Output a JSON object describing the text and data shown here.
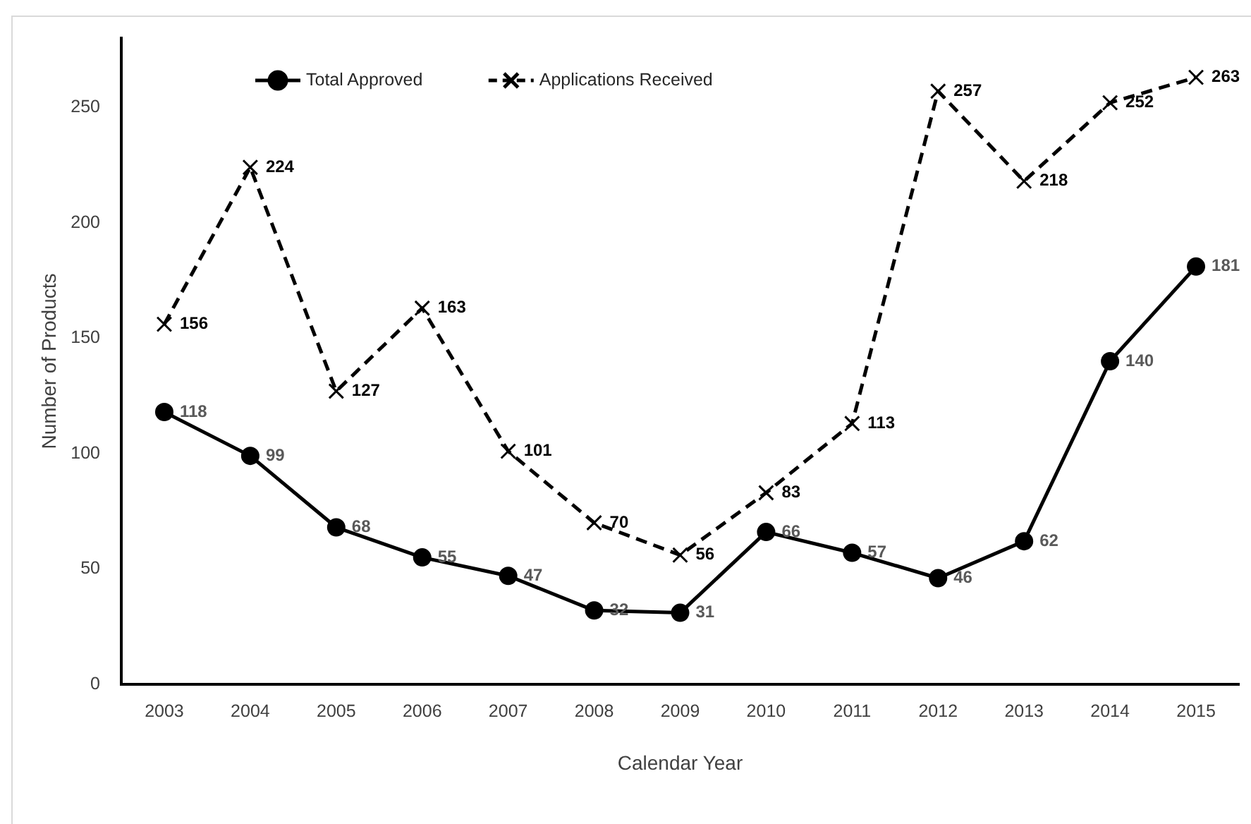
{
  "chart_data": {
    "type": "line",
    "xlabel": "Calendar Year",
    "ylabel": "Number of Products",
    "categories": [
      "2003",
      "2004",
      "2005",
      "2006",
      "2007",
      "2008",
      "2009",
      "2010",
      "2011",
      "2012",
      "2013",
      "2014",
      "2015"
    ],
    "series": [
      {
        "name": "Total Approved",
        "color": "#000000",
        "marker": "circle",
        "line_style": "solid",
        "values": [
          118,
          99,
          68,
          55,
          47,
          32,
          31,
          66,
          57,
          46,
          62,
          140,
          181
        ]
      },
      {
        "name": "Applications Received",
        "color": "#000000",
        "marker": "cross",
        "line_style": "dashed",
        "values": [
          156,
          224,
          127,
          163,
          101,
          70,
          56,
          83,
          113,
          257,
          218,
          252,
          263
        ]
      }
    ],
    "ylim": [
      0,
      280
    ],
    "yticks": [
      0,
      50,
      100,
      150,
      200,
      250
    ],
    "grid": false,
    "legend": "top left",
    "data_labels": true
  }
}
